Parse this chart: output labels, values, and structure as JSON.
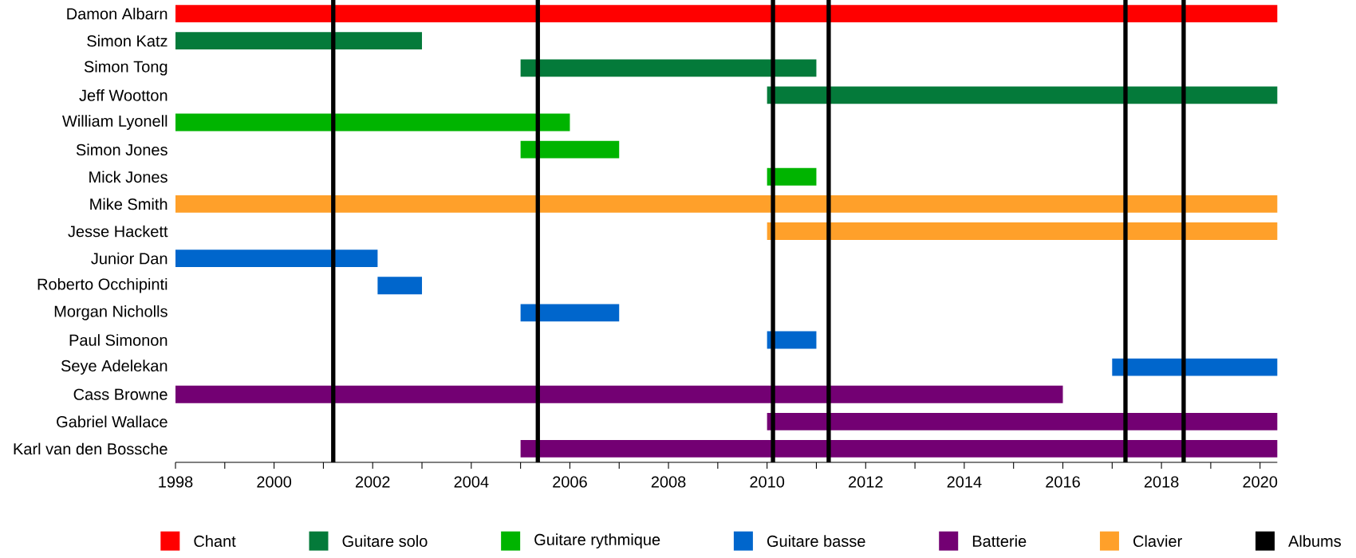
{
  "chart_data": {
    "type": "bar",
    "orientation": "horizontal",
    "legend": "bottom",
    "grid": false,
    "categories": [
      "Damon Albarn",
      "Simon Katz",
      "Simon Tong",
      "Jeff Wootton",
      "William Lyonell",
      "Simon Jones",
      "Mick Jones",
      "Mike Smith",
      "Jesse Hackett",
      "Junior Dan",
      "Roberto Occhipinti",
      "Morgan Nicholls",
      "Paul Simonon",
      "Seye Adelekan",
      "Cass Browne",
      "Gabriel Wallace",
      "Karl van den Bossche"
    ],
    "series": [
      {
        "name": "Chant",
        "color": "#ff0000",
        "base": [
          1998,
          null,
          null,
          null,
          null,
          null,
          null,
          null,
          null,
          null,
          null,
          null,
          null,
          null,
          null,
          null,
          null
        ],
        "values": [
          22.35,
          null,
          null,
          null,
          null,
          null,
          null,
          null,
          null,
          null,
          null,
          null,
          null,
          null,
          null,
          null,
          null
        ]
      },
      {
        "name": "Guitare solo",
        "color": "#047a3a",
        "base": [
          null,
          1998,
          2005,
          2010,
          null,
          null,
          null,
          null,
          null,
          null,
          null,
          null,
          null,
          null,
          null,
          null,
          null
        ],
        "values": [
          null,
          5,
          6,
          10.35,
          null,
          null,
          null,
          null,
          null,
          null,
          null,
          null,
          null,
          null,
          null,
          null,
          null
        ]
      },
      {
        "name": "Guitare rythmique",
        "color": "#00b400",
        "base": [
          null,
          null,
          null,
          null,
          1998,
          2005,
          2010,
          null,
          null,
          null,
          null,
          null,
          null,
          null,
          null,
          null,
          null
        ],
        "values": [
          null,
          null,
          null,
          null,
          8,
          2,
          1,
          null,
          null,
          null,
          null,
          null,
          null,
          null,
          null,
          null,
          null
        ]
      },
      {
        "name": "Guitare basse",
        "color": "#0066cc",
        "base": [
          null,
          null,
          null,
          null,
          null,
          null,
          null,
          null,
          null,
          1998,
          2002.1,
          2005,
          2010,
          2017,
          null,
          null,
          null
        ],
        "values": [
          null,
          null,
          null,
          null,
          null,
          null,
          null,
          null,
          null,
          4.1,
          0.9,
          2,
          1,
          3.35,
          null,
          null,
          null
        ]
      },
      {
        "name": "Batterie",
        "color": "#730073",
        "base": [
          null,
          null,
          null,
          null,
          null,
          null,
          null,
          null,
          null,
          null,
          null,
          null,
          null,
          null,
          1998,
          2010,
          2005
        ],
        "values": [
          null,
          null,
          null,
          null,
          null,
          null,
          null,
          null,
          null,
          null,
          null,
          null,
          null,
          null,
          18,
          10.35,
          15.35
        ]
      },
      {
        "name": "Clavier",
        "color": "#ffa02a",
        "base": [
          null,
          null,
          null,
          null,
          null,
          null,
          null,
          1998,
          2010,
          null,
          null,
          null,
          null,
          null,
          null,
          null,
          null
        ],
        "values": [
          null,
          null,
          null,
          null,
          null,
          null,
          null,
          22.35,
          10.35,
          null,
          null,
          null,
          null,
          null,
          null,
          null,
          null
        ]
      }
    ],
    "ref_lines": [
      {
        "axis": "x",
        "value": 2001.2,
        "label": "Albums",
        "color": "#000000"
      },
      {
        "axis": "x",
        "value": 2005.35,
        "color": "#000000"
      },
      {
        "axis": "x",
        "value": 2010.12,
        "color": "#000000"
      },
      {
        "axis": "x",
        "value": 2011.25,
        "color": "#000000"
      },
      {
        "axis": "x",
        "value": 2017.27,
        "color": "#000000"
      },
      {
        "axis": "x",
        "value": 2018.45,
        "color": "#000000"
      }
    ],
    "xlim": [
      1998,
      2020.35
    ],
    "xticks": [
      1998,
      {
        "value": 1999,
        "label": null
      },
      2000,
      {
        "value": 2001,
        "label": null
      },
      2002,
      {
        "value": 2003,
        "label": null
      },
      2004,
      {
        "value": 2005,
        "label": null
      },
      2006,
      {
        "value": 2007,
        "label": null
      },
      2008,
      {
        "value": 2009,
        "label": null
      },
      2010,
      {
        "value": 2011,
        "label": null
      },
      2012,
      {
        "value": 2013,
        "label": null
      },
      2014,
      {
        "value": 2015,
        "label": null
      },
      2016,
      {
        "value": 2017,
        "label": null
      },
      2018,
      {
        "value": 2019,
        "label": null
      },
      2020
    ]
  }
}
